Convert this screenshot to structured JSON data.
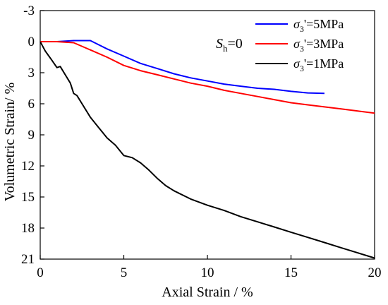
{
  "chart_data": {
    "type": "line",
    "title": "",
    "xlabel": "Axial Strain / %",
    "ylabel": "Volumetric Strain/ %",
    "xlim": [
      0,
      20
    ],
    "ylim": [
      -3,
      21
    ],
    "y_inverted": true,
    "grid": false,
    "legend_position": "top-right",
    "x_ticks": [
      0,
      5,
      10,
      15,
      20
    ],
    "y_ticks": [
      -3,
      0,
      3,
      6,
      9,
      12,
      15,
      18,
      21
    ],
    "annotation": {
      "symbol": "S",
      "subscript": "h",
      "rest": "=0"
    },
    "series": [
      {
        "name": "σ3'=5MPa",
        "legend": {
          "sym": "σ",
          "sub": "3",
          "rest": "'=5MPa"
        },
        "color": "#0000ff",
        "x": [
          0,
          1,
          2,
          2.5,
          3,
          3.5,
          4,
          5,
          6,
          7,
          8,
          9,
          10,
          11,
          12,
          13,
          14,
          15,
          16,
          17
        ],
        "y": [
          0,
          0,
          -0.1,
          -0.1,
          -0.1,
          0.3,
          0.7,
          1.4,
          2.1,
          2.6,
          3.1,
          3.5,
          3.8,
          4.1,
          4.3,
          4.5,
          4.6,
          4.8,
          4.95,
          5.0
        ]
      },
      {
        "name": "σ3'=3MPa",
        "legend": {
          "sym": "σ",
          "sub": "3",
          "rest": "'=3MPa"
        },
        "color": "#ff0000",
        "x": [
          0,
          1,
          2,
          3,
          4,
          5,
          6,
          7,
          8,
          9,
          10,
          11,
          12,
          13,
          14,
          15,
          16,
          17,
          18,
          19,
          20
        ],
        "y": [
          0,
          0,
          0.1,
          0.8,
          1.5,
          2.3,
          2.8,
          3.2,
          3.6,
          4.0,
          4.3,
          4.7,
          5.0,
          5.3,
          5.6,
          5.9,
          6.1,
          6.3,
          6.5,
          6.7,
          6.9
        ]
      },
      {
        "name": "σ3'=1MPa",
        "legend": {
          "sym": "σ",
          "sub": "3",
          "rest": "'=1MPa"
        },
        "color": "#000000",
        "x": [
          0,
          0.3,
          0.7,
          1.0,
          1.2,
          1.5,
          1.8,
          2.0,
          2.2,
          2.5,
          3.0,
          3.5,
          4.0,
          4.5,
          5.0,
          5.5,
          6.0,
          6.5,
          7.0,
          7.5,
          8.0,
          9.0,
          10.0,
          11.0,
          12.0,
          13.0,
          14.0,
          15.0,
          16.0,
          17.0,
          18.0,
          19.0,
          20.0
        ],
        "y": [
          0,
          0.9,
          1.8,
          2.5,
          2.4,
          3.2,
          4.0,
          5.0,
          5.2,
          6.0,
          7.3,
          8.3,
          9.3,
          10.0,
          11.0,
          11.2,
          11.7,
          12.4,
          13.2,
          13.9,
          14.4,
          15.2,
          15.8,
          16.3,
          16.9,
          17.4,
          17.9,
          18.4,
          18.9,
          19.4,
          19.9,
          20.4,
          20.9
        ]
      }
    ]
  }
}
